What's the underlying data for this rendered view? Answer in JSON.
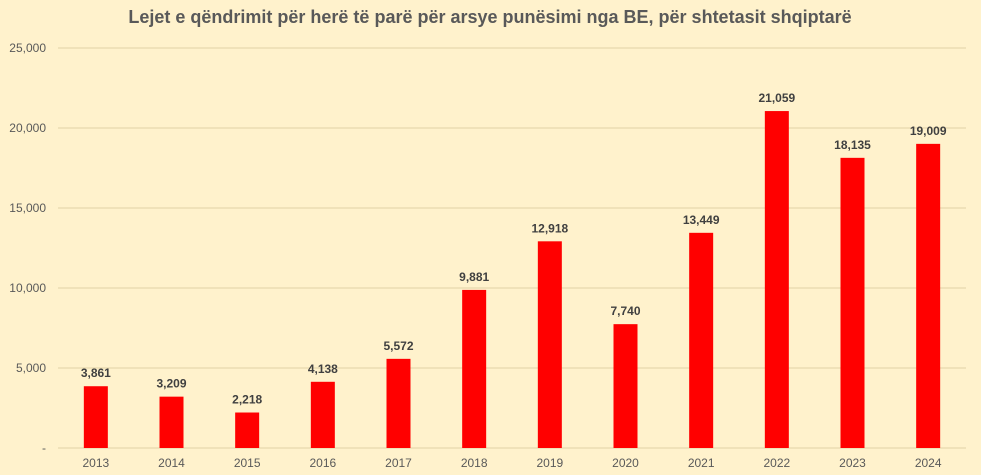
{
  "chart_data": {
    "type": "bar",
    "title": "Lejet e qëndrimit për herë të parë për arsye punësimi nga BE, për shtetasit shqiptarë",
    "xlabel": "",
    "ylabel": "",
    "categories": [
      "2013",
      "2014",
      "2015",
      "2016",
      "2017",
      "2018",
      "2019",
      "2020",
      "2021",
      "2022",
      "2023",
      "2024"
    ],
    "values": [
      3861,
      3209,
      2218,
      4138,
      5572,
      9881,
      12918,
      7740,
      13449,
      21059,
      18135,
      19009
    ],
    "value_labels": [
      "3,861",
      "3,209",
      "2,218",
      "4,138",
      "5,572",
      "9,881",
      "12,918",
      "7,740",
      "13,449",
      "21,059",
      "18,135",
      "19,009"
    ],
    "ylim": [
      0,
      25000
    ],
    "yticks": [
      0,
      5000,
      10000,
      15000,
      20000,
      25000
    ],
    "ytick_labels": [
      "-",
      "5,000",
      "10,000",
      "15,000",
      "20,000",
      "25,000"
    ],
    "grid": true,
    "legend": "none",
    "colors": {
      "bar": "#ff0000",
      "background": "#fff2cc",
      "grid": "#e2d3a6",
      "text": "#595959"
    }
  }
}
